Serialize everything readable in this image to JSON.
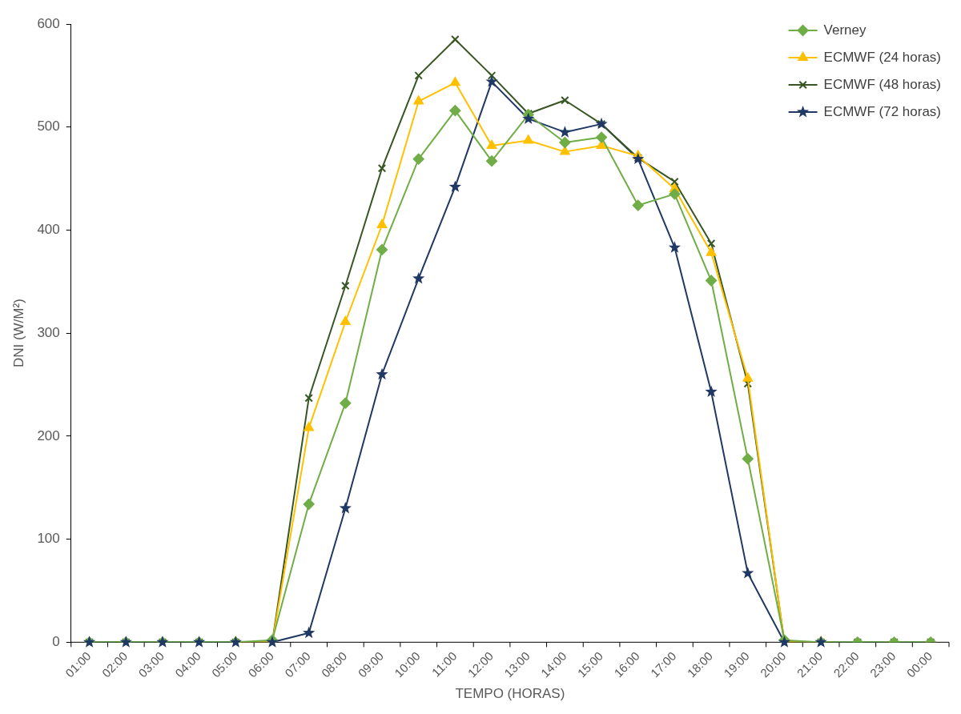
{
  "chart_data": {
    "type": "line",
    "xlabel": "TEMPO (HORAS)",
    "ylabel": "DNI (W/M²)",
    "categories": [
      "01:00",
      "02:00",
      "03:00",
      "04:00",
      "05:00",
      "06:00",
      "07:00",
      "08:00",
      "09:00",
      "10:00",
      "11:00",
      "12:00",
      "13:00",
      "14:00",
      "15:00",
      "16:00",
      "17:00",
      "18:00",
      "19:00",
      "20:00",
      "21:00",
      "22:00",
      "23:00",
      "00:00"
    ],
    "ylim": [
      0,
      600
    ],
    "yticks": [
      0,
      100,
      200,
      300,
      400,
      500,
      600
    ],
    "grid": false,
    "legend": "top right",
    "line_style": "solid",
    "series": [
      {
        "name": "Verney",
        "color": "#70ad47",
        "marker": "diamond",
        "values": [
          0,
          0,
          0,
          0,
          0,
          2,
          134,
          232,
          381,
          469,
          516,
          467,
          512,
          485,
          490,
          424,
          435,
          351,
          178,
          2,
          0,
          0,
          0,
          0
        ]
      },
      {
        "name": "ECMWF (24 horas)",
        "color": "#ffc000",
        "marker": "triangle",
        "values": [
          null,
          null,
          null,
          null,
          0,
          0,
          208,
          311,
          405,
          525,
          543,
          482,
          487,
          476,
          482,
          472,
          440,
          378,
          256,
          0,
          0,
          null,
          null,
          null
        ]
      },
      {
        "name": "ECMWF (48 horas)",
        "color": "#375623",
        "marker": "cross",
        "values": [
          0,
          0,
          0,
          0,
          0,
          0,
          237,
          346,
          460,
          550,
          585,
          550,
          513,
          526,
          503,
          470,
          447,
          387,
          251,
          0,
          0,
          0,
          0,
          0
        ]
      },
      {
        "name": "ECMWF (72 horas)",
        "color": "#203864",
        "marker": "star",
        "values": [
          0,
          0,
          0,
          0,
          0,
          0,
          9,
          130,
          260,
          353,
          442,
          544,
          508,
          495,
          503,
          469,
          383,
          243,
          67,
          0,
          0,
          null,
          null,
          null
        ]
      }
    ]
  }
}
